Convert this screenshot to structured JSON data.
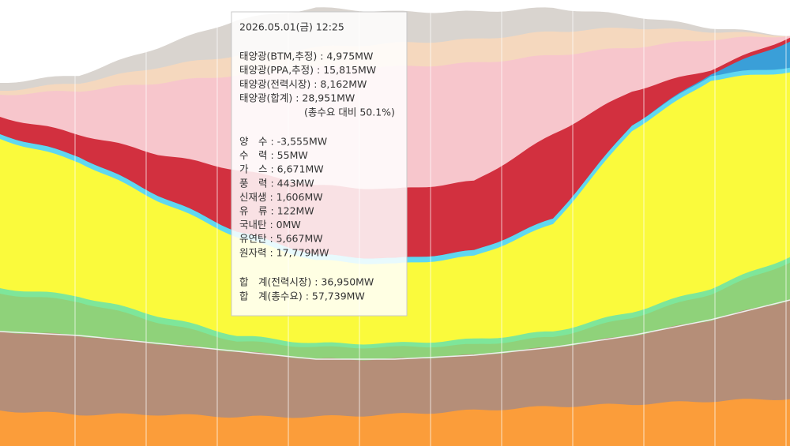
{
  "tooltip": {
    "time": "2026.05.01(금) 12:25",
    "solar": [
      "태양광(BTM,추정) : 4,975MW",
      "태양광(PPA,추정) : 15,815MW",
      "태양광(전력시장) : 8,162MW",
      "태양광(합계) : 28,951MW"
    ],
    "solar_share": "(총수요 대비 50.1%)",
    "sources": [
      "양　수 : -3,555MW",
      "수　력 : 55MW",
      "가　스 : 6,671MW",
      "풍　력 : 443MW",
      "신재생 : 1,606MW",
      "유　류 : 122MW",
      "국내탄 : 0MW",
      "유연탄 : 5,667MW",
      "원자력 : 17,779MW"
    ],
    "totals": [
      "합　계(전력시장) : 36,950MW",
      "합　계(총수요) : 57,739MW"
    ]
  }
}
